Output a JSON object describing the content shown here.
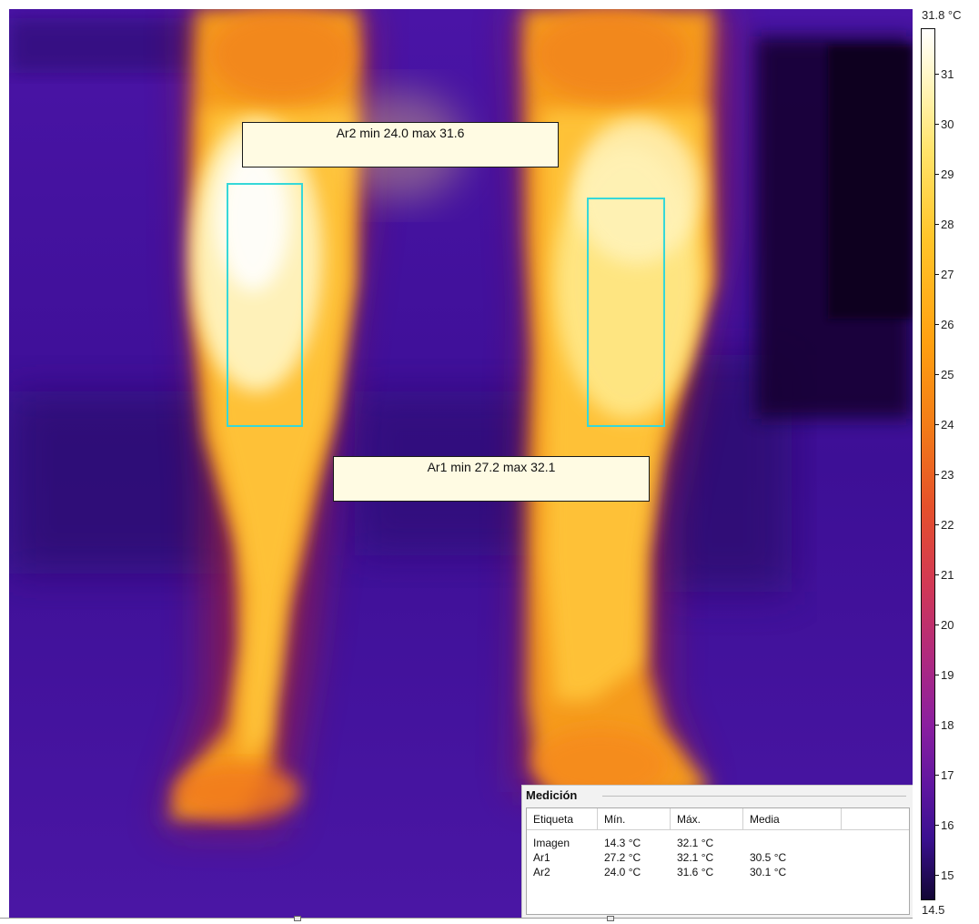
{
  "annotations": {
    "ar2_label": "Ar2 min 24.0 max 31.6",
    "ar1_label": "Ar1 min 27.2 max 32.1"
  },
  "scale": {
    "max_label": "31.8 °C",
    "min_label": "14.5",
    "ticks": [
      "31",
      "30",
      "29",
      "28",
      "27",
      "26",
      "25",
      "24",
      "23",
      "22",
      "21",
      "20",
      "19",
      "18",
      "17",
      "16",
      "15"
    ]
  },
  "measurement": {
    "title": "Medición",
    "headers": [
      "Etiqueta",
      "Mín.",
      "Máx.",
      "Media"
    ],
    "rows": [
      [
        "Imagen",
        "14.3 °C",
        "32.1 °C",
        ""
      ],
      [
        "Ar1",
        "27.2 °C",
        "32.1 °C",
        "30.5 °C"
      ],
      [
        "Ar2",
        "24.0 °C",
        "31.6 °C",
        "30.1 °C"
      ]
    ]
  }
}
